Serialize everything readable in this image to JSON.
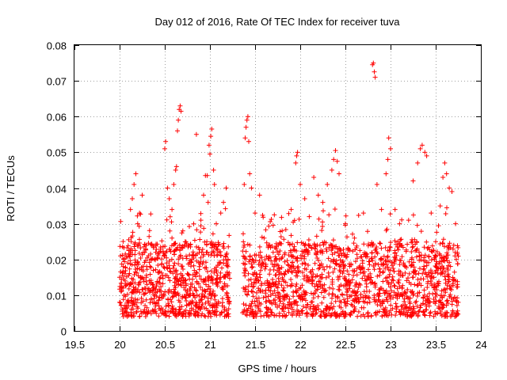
{
  "chart_data": {
    "type": "scatter",
    "title": "Day 012 of 2016, Rate Of TEC Index for receiver tuva",
    "xlabel": "GPS time / hours",
    "ylabel": "ROTI / TECUs",
    "xlim": [
      19.5,
      24
    ],
    "ylim": [
      0,
      0.08
    ],
    "xticks": [
      19.5,
      20,
      20.5,
      21,
      21.5,
      22,
      22.5,
      23,
      23.5,
      24
    ],
    "xtick_labels": [
      "19.5",
      "20",
      "20.5",
      "21",
      "21.5",
      "22",
      "22.5",
      "23",
      "23.5",
      "24"
    ],
    "yticks": [
      0,
      0.01,
      0.02,
      0.03,
      0.04,
      0.05,
      0.06,
      0.07,
      0.08
    ],
    "ytick_labels": [
      "0",
      "0.01",
      "0.02",
      "0.03",
      "0.04",
      "0.05",
      "0.06",
      "0.07",
      "0.08"
    ],
    "grid": true,
    "marker": "+",
    "color": "#ff0000",
    "series": [
      {
        "name": "ROTI",
        "x_range": [
          20.0,
          23.75
        ],
        "data_gap": [
          21.22,
          21.36
        ],
        "typical_y_range": [
          0.004,
          0.025
        ],
        "points": [
          [
            20.0,
            0.015
          ],
          [
            20.0,
            0.008
          ],
          [
            20.01,
            0.021
          ],
          [
            20.02,
            0.012
          ],
          [
            20.03,
            0.006
          ],
          [
            20.04,
            0.018
          ],
          [
            20.05,
            0.01
          ],
          [
            20.06,
            0.014
          ],
          [
            20.08,
            0.007
          ],
          [
            20.09,
            0.019
          ],
          [
            20.1,
            0.0255
          ],
          [
            20.12,
            0.034
          ],
          [
            20.14,
            0.037
          ],
          [
            20.16,
            0.041
          ],
          [
            20.18,
            0.044
          ],
          [
            20.2,
            0.03
          ],
          [
            20.22,
            0.033
          ],
          [
            20.25,
            0.038
          ],
          [
            20.28,
            0.012
          ],
          [
            20.3,
            0.018
          ],
          [
            20.35,
            0.009
          ],
          [
            20.4,
            0.022
          ],
          [
            20.45,
            0.015
          ],
          [
            20.48,
            0.005
          ],
          [
            20.5,
            0.051
          ],
          [
            20.51,
            0.053
          ],
          [
            20.53,
            0.04
          ],
          [
            20.55,
            0.037
          ],
          [
            20.58,
            0.034
          ],
          [
            20.6,
            0.041
          ],
          [
            20.62,
            0.045
          ],
          [
            20.63,
            0.046
          ],
          [
            20.64,
            0.056
          ],
          [
            20.65,
            0.059
          ],
          [
            20.66,
            0.062
          ],
          [
            20.67,
            0.063
          ],
          [
            20.68,
            0.0615
          ],
          [
            20.7,
            0.028
          ],
          [
            20.72,
            0.024
          ],
          [
            20.75,
            0.016
          ],
          [
            20.8,
            0.02
          ],
          [
            20.85,
            0.055
          ],
          [
            20.9,
            0.031
          ],
          [
            20.93,
            0.038
          ],
          [
            20.95,
            0.0435
          ],
          [
            20.97,
            0.0435
          ],
          [
            20.98,
            0.036
          ],
          [
            20.99,
            0.052
          ],
          [
            21.0,
            0.0495
          ],
          [
            21.01,
            0.0545
          ],
          [
            21.02,
            0.0565
          ],
          [
            21.04,
            0.045
          ],
          [
            21.05,
            0.041
          ],
          [
            21.07,
            0.03
          ],
          [
            21.1,
            0.022
          ],
          [
            21.12,
            0.033
          ],
          [
            21.15,
            0.036
          ],
          [
            21.18,
            0.04
          ],
          [
            21.2,
            0.018
          ],
          [
            21.21,
            0.008
          ],
          [
            21.37,
            0.012
          ],
          [
            21.38,
            0.041
          ],
          [
            21.39,
            0.054
          ],
          [
            21.4,
            0.057
          ],
          [
            21.41,
            0.059
          ],
          [
            21.42,
            0.06
          ],
          [
            21.43,
            0.053
          ],
          [
            21.44,
            0.044
          ],
          [
            21.46,
            0.04
          ],
          [
            21.5,
            0.033
          ],
          [
            21.55,
            0.038
          ],
          [
            21.6,
            0.026
          ],
          [
            21.7,
            0.022
          ],
          [
            21.8,
            0.028
          ],
          [
            21.9,
            0.034
          ],
          [
            21.95,
            0.047
          ],
          [
            21.96,
            0.049
          ],
          [
            21.97,
            0.05
          ],
          [
            22.0,
            0.041
          ],
          [
            22.05,
            0.037
          ],
          [
            22.1,
            0.032
          ],
          [
            22.15,
            0.043
          ],
          [
            22.2,
            0.038
          ],
          [
            22.25,
            0.036
          ],
          [
            22.3,
            0.041
          ],
          [
            22.35,
            0.045
          ],
          [
            22.37,
            0.048
          ],
          [
            22.39,
            0.0505
          ],
          [
            22.41,
            0.0475
          ],
          [
            22.43,
            0.044
          ],
          [
            22.5,
            0.03
          ],
          [
            22.6,
            0.026
          ],
          [
            22.7,
            0.033
          ],
          [
            22.8,
            0.0745
          ],
          [
            22.81,
            0.075
          ],
          [
            22.82,
            0.0725
          ],
          [
            22.83,
            0.071
          ],
          [
            22.85,
            0.041
          ],
          [
            22.9,
            0.034
          ],
          [
            22.95,
            0.044
          ],
          [
            22.97,
            0.048
          ],
          [
            22.98,
            0.054
          ],
          [
            23.0,
            0.051
          ],
          [
            23.05,
            0.034
          ],
          [
            23.1,
            0.03
          ],
          [
            23.2,
            0.031
          ],
          [
            23.25,
            0.042
          ],
          [
            23.3,
            0.047
          ],
          [
            23.33,
            0.051
          ],
          [
            23.35,
            0.052
          ],
          [
            23.38,
            0.05
          ],
          [
            23.4,
            0.049
          ],
          [
            23.45,
            0.033
          ],
          [
            23.5,
            0.025
          ],
          [
            23.55,
            0.035
          ],
          [
            23.58,
            0.043
          ],
          [
            23.6,
            0.047
          ],
          [
            23.62,
            0.044
          ],
          [
            23.65,
            0.04
          ],
          [
            23.68,
            0.039
          ],
          [
            23.7,
            0.024
          ],
          [
            23.72,
            0.03
          ],
          [
            23.73,
            0.005
          ],
          [
            23.74,
            0.013
          ],
          [
            23.75,
            0.008
          ]
        ]
      }
    ]
  }
}
